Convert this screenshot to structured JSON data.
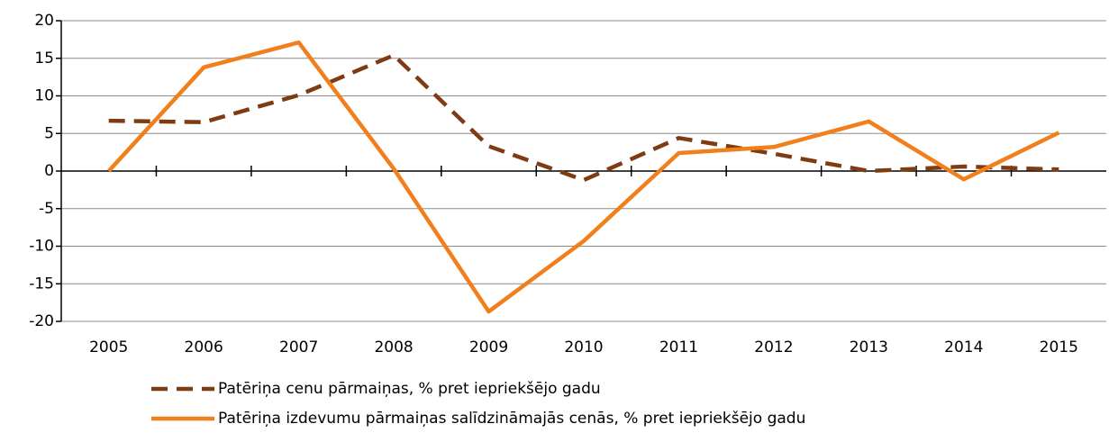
{
  "chart_data": {
    "type": "line",
    "categories": [
      "2005",
      "2006",
      "2007",
      "2008",
      "2009",
      "2010",
      "2011",
      "2012",
      "2013",
      "2014",
      "2015"
    ],
    "series": [
      {
        "name": "Patēriņa cenu pārmaiņas,  % pret iepriekšējo gadu",
        "color": "#7f3b12",
        "dashed": true,
        "values": [
          6.7,
          6.5,
          10.1,
          15.4,
          3.3,
          -1.2,
          4.4,
          2.3,
          0.0,
          0.6,
          0.2
        ]
      },
      {
        "name": "Patēriņa izdevumu pārmaiņas salīdzināmajās cenās, % pret iepriekšējo gadu",
        "color": "#f07f1c",
        "dashed": false,
        "values": [
          0,
          13.8,
          17.1,
          0.3,
          -18.7,
          -9.3,
          2.4,
          3.2,
          6.6,
          -1.1,
          5.1
        ]
      }
    ],
    "ylim": [
      -20,
      20
    ],
    "yticks": [
      -20,
      -15,
      -10,
      -5,
      0,
      5,
      10,
      15,
      20
    ],
    "grid": true,
    "legend": "bottom"
  }
}
